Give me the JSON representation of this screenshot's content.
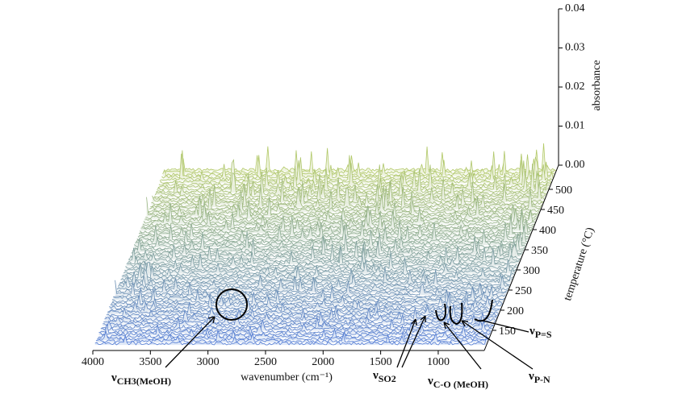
{
  "chart_data": {
    "type": "waterfall",
    "x_label": "wavenumber (cm⁻¹)",
    "y_label": "temperature (°C)",
    "z_label": "absorbance",
    "xlim": [
      4000,
      600
    ],
    "xticks": [
      4000,
      3500,
      3000,
      2500,
      2000,
      1500,
      1000
    ],
    "ylim": [
      100,
      560
    ],
    "yticks": [
      150,
      200,
      250,
      300,
      350,
      400,
      450,
      500
    ],
    "zlim": [
      0,
      0.04
    ],
    "zticks": [
      {
        "value": 0,
        "label": "0.00"
      },
      {
        "value": 0.01,
        "label": "0.01"
      },
      {
        "value": 0.02,
        "label": "0.02"
      },
      {
        "value": 0.03,
        "label": "0.03"
      },
      {
        "value": 0.04,
        "label": "0.04"
      }
    ],
    "front_color": "#4f78d8",
    "back_color": "#b6cc63",
    "annotations": [
      {
        "symbol": "ν",
        "subscript": "CH3(MeOH)"
      },
      {
        "symbol": "ν",
        "subscript": "SO2"
      },
      {
        "symbol": "ν",
        "subscript": "C-O (MeOH)"
      },
      {
        "symbol": "ν",
        "subscript": "P-N"
      },
      {
        "symbol": "ν",
        "subscript": "P=S"
      }
    ]
  }
}
